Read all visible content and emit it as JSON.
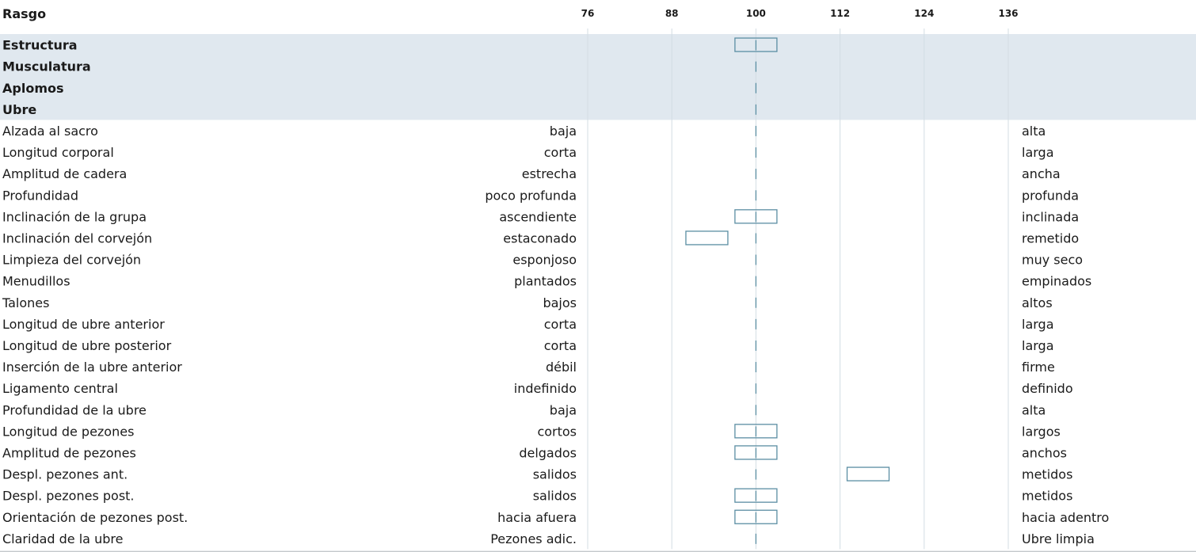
{
  "header": {
    "column_label": "Rasgo"
  },
  "chart_data": {
    "type": "profile",
    "xlim": [
      70,
      142
    ],
    "ticks": [
      76,
      88,
      100,
      112,
      124,
      136
    ],
    "center": 100,
    "colors": {
      "band": "#e0e8ef",
      "box": "#5b8ea3",
      "grid": "#d3dde3",
      "centerline": "#5b8ea3"
    },
    "groups": [
      {
        "label": "Estructura",
        "value": 100
      },
      {
        "label": "Musculatura",
        "value": null
      },
      {
        "label": "Aplomos",
        "value": null
      },
      {
        "label": "Ubre",
        "value": null
      }
    ],
    "traits": [
      {
        "label": "Alzada al sacro",
        "low": "baja",
        "high": "alta",
        "value": null
      },
      {
        "label": "Longitud corporal",
        "low": "corta",
        "high": "larga",
        "value": null
      },
      {
        "label": "Amplitud de cadera",
        "low": "estrecha",
        "high": "ancha",
        "value": null
      },
      {
        "label": "Profundidad",
        "low": "poco profunda",
        "high": "profunda",
        "value": null
      },
      {
        "label": "Inclinación de la grupa",
        "low": "ascendiente",
        "high": "inclinada",
        "value": 100
      },
      {
        "label": "Inclinación del corvejón",
        "low": "estaconado",
        "high": "remetido",
        "value": 93
      },
      {
        "label": "Limpieza del corvejón",
        "low": "esponjoso",
        "high": "muy seco",
        "value": null
      },
      {
        "label": "Menudillos",
        "low": "plantados",
        "high": "empinados",
        "value": null
      },
      {
        "label": "Talones",
        "low": "bajos",
        "high": "altos",
        "value": null
      },
      {
        "label": "Longitud de ubre anterior",
        "low": "corta",
        "high": "larga",
        "value": null
      },
      {
        "label": "Longitud de ubre posterior",
        "low": "corta",
        "high": "larga",
        "value": null
      },
      {
        "label": "Inserción de la ubre anterior",
        "low": "débil",
        "high": "firme",
        "value": null
      },
      {
        "label": "Ligamento central",
        "low": "indefinido",
        "high": "definido",
        "value": null
      },
      {
        "label": "Profundidad de la ubre",
        "low": "baja",
        "high": "alta",
        "value": null
      },
      {
        "label": "Longitud de pezones",
        "low": "cortos",
        "high": "largos",
        "value": 100
      },
      {
        "label": "Amplitud de pezones",
        "low": "delgados",
        "high": "anchos",
        "value": 100
      },
      {
        "label": "Despl. pezones ant.",
        "low": "salidos",
        "high": "metidos",
        "value": 116
      },
      {
        "label": "Despl. pezones post.",
        "low": "salidos",
        "high": "metidos",
        "value": 100
      },
      {
        "label": "Orientación de pezones post.",
        "low": "hacia afuera",
        "high": "hacia adentro",
        "value": 100
      },
      {
        "label": "Claridad de la ubre",
        "low": "Pezones adic.",
        "high": "Ubre limpia",
        "value": null
      }
    ]
  }
}
